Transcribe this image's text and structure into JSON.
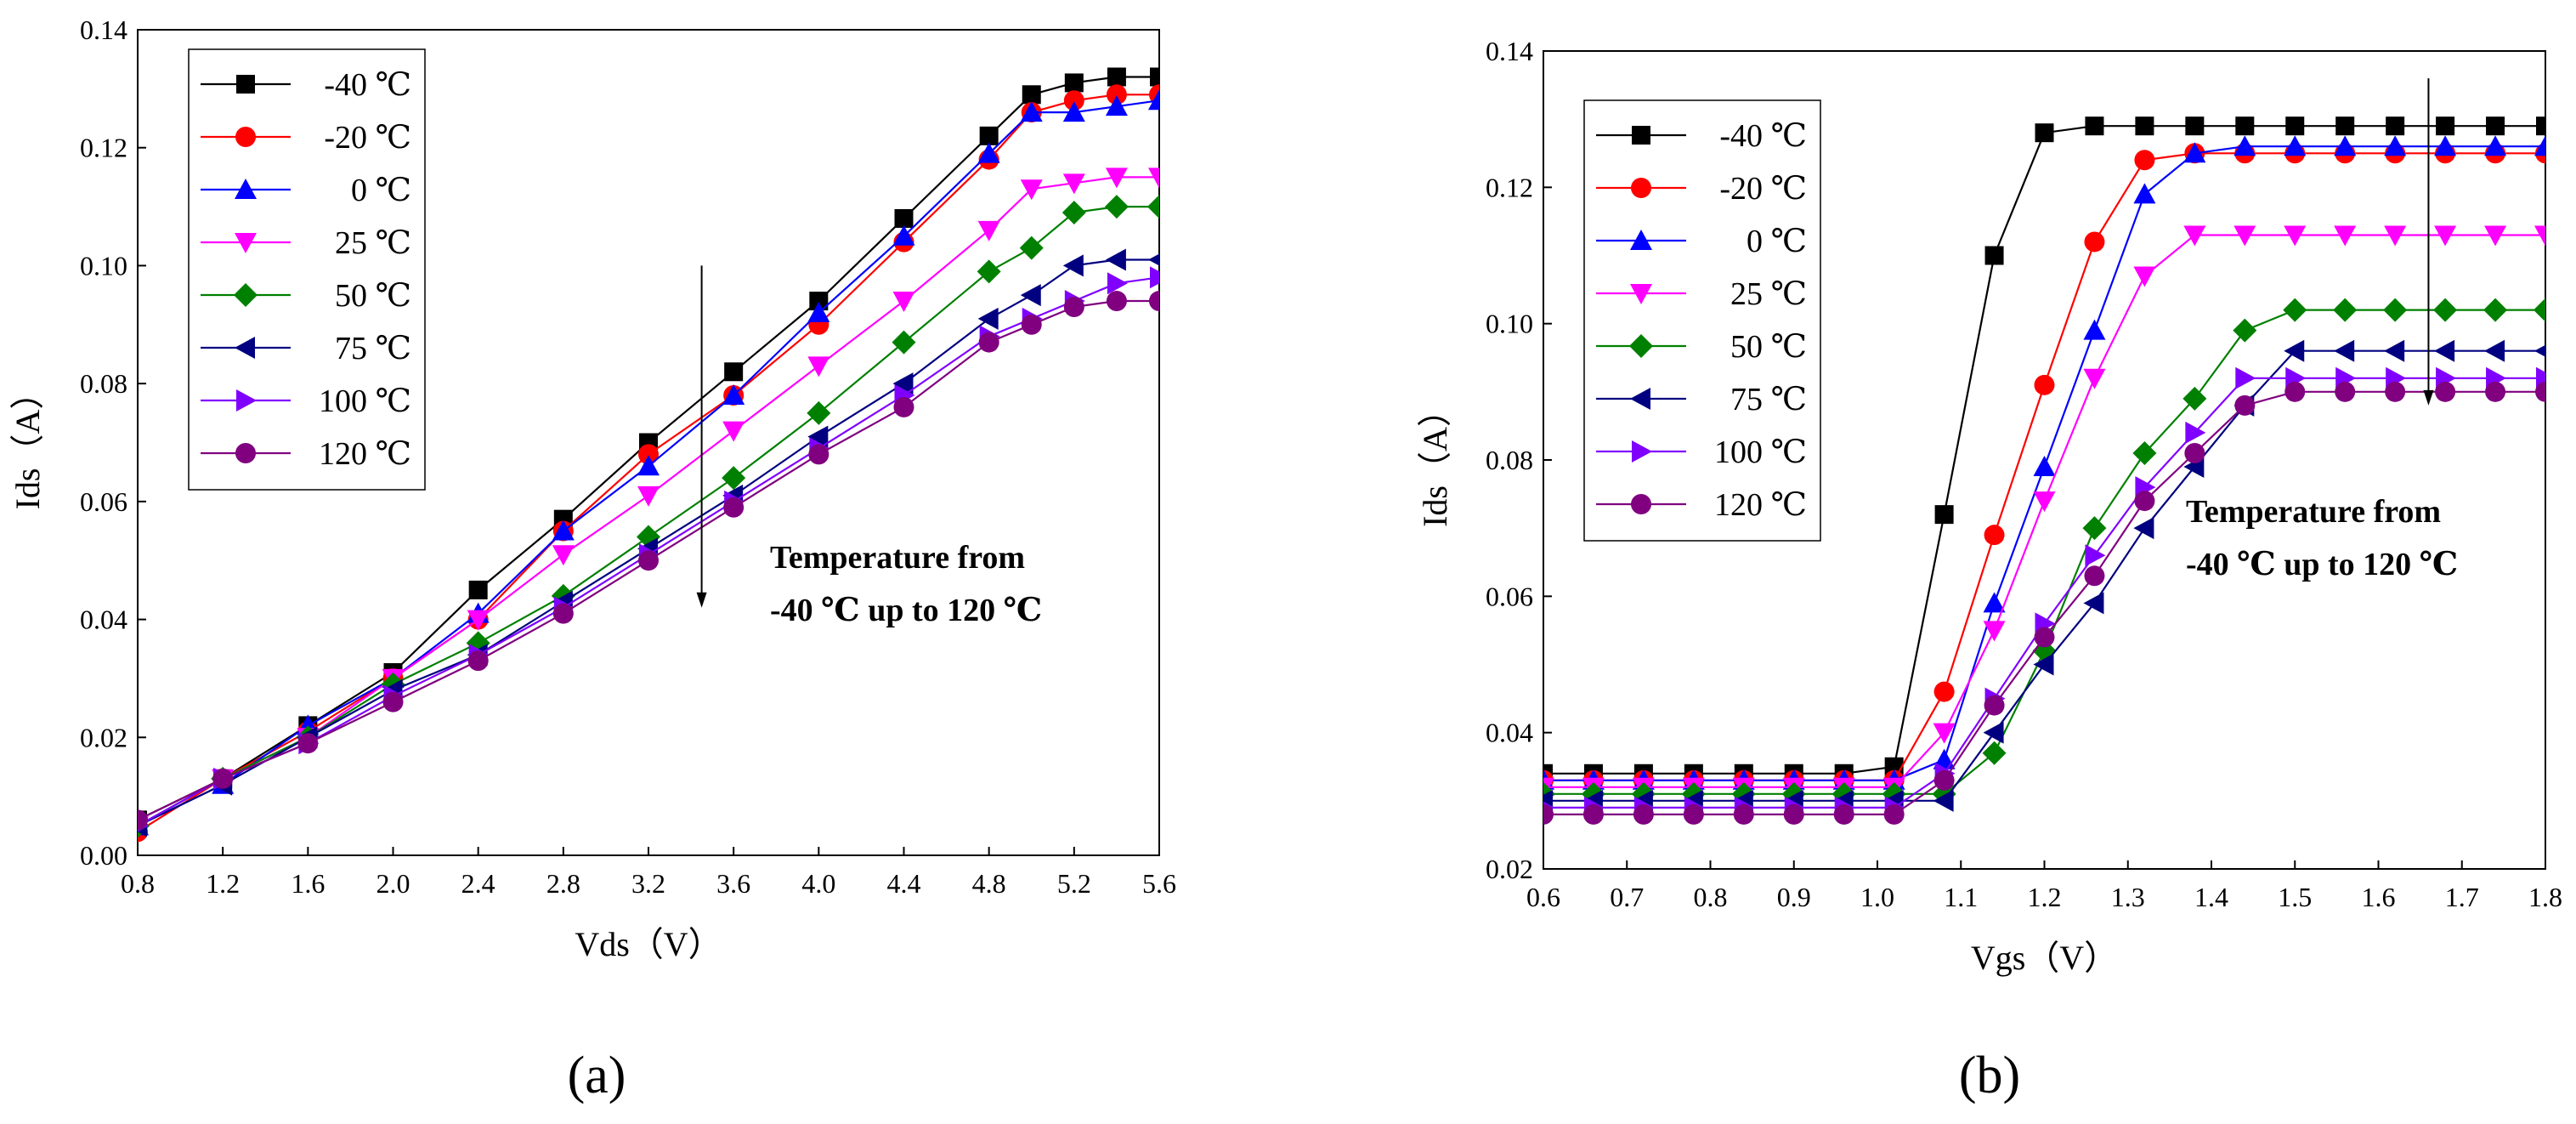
{
  "chart_data": [
    {
      "type": "line",
      "panel_label": "(a)",
      "xlabel": "Vds（V）",
      "ylabel": "Ids（A）",
      "xlim": [
        0.8,
        5.6
      ],
      "ylim": [
        0.0,
        0.14
      ],
      "xticks": [
        0.8,
        1.2,
        1.6,
        2.0,
        2.4,
        2.8,
        3.2,
        3.6,
        4.0,
        4.4,
        4.8,
        5.2,
        5.6
      ],
      "xtick_labels": [
        "0.8",
        "1.2",
        "1.6",
        "2.0",
        "2.4",
        "2.8",
        "3.2",
        "3.6",
        "4.0",
        "4.4",
        "4.8",
        "5.2",
        "5.6"
      ],
      "yticks": [
        0.0,
        0.02,
        0.04,
        0.06,
        0.08,
        0.1,
        0.12,
        0.14
      ],
      "ytick_labels": [
        "0.00",
        "0.02",
        "0.04",
        "0.06",
        "0.08",
        "0.10",
        "0.12",
        "0.14"
      ],
      "legend_position": "top-left",
      "annotation": [
        "Temperature from",
        "-40 ℃ up to 120 ℃"
      ],
      "x": [
        0.8,
        1.2,
        1.6,
        2.0,
        2.4,
        2.8,
        3.2,
        3.6,
        4.0,
        4.4,
        4.8,
        5.0,
        5.2,
        5.4,
        5.6
      ],
      "series": [
        {
          "name": "-40 ℃",
          "color": "#000000",
          "marker": "square",
          "values": [
            0.006,
            0.013,
            0.022,
            0.031,
            0.045,
            0.057,
            0.07,
            0.082,
            0.094,
            0.108,
            0.122,
            0.129,
            0.131,
            0.132,
            0.132
          ]
        },
        {
          "name": "-20 ℃",
          "color": "#ff0000",
          "marker": "circle",
          "values": [
            0.004,
            0.013,
            0.021,
            0.03,
            0.04,
            0.055,
            0.068,
            0.078,
            0.09,
            0.104,
            0.118,
            0.126,
            0.128,
            0.129,
            0.129
          ]
        },
        {
          "name": "0 ℃",
          "color": "#0000ff",
          "marker": "triangle-up",
          "values": [
            0.005,
            0.012,
            0.022,
            0.03,
            0.041,
            0.055,
            0.066,
            0.078,
            0.092,
            0.105,
            0.119,
            0.126,
            0.126,
            0.127,
            0.128
          ]
        },
        {
          "name": "25 ℃",
          "color": "#ff00ff",
          "marker": "triangle-down",
          "values": [
            0.005,
            0.013,
            0.02,
            0.03,
            0.04,
            0.051,
            0.061,
            0.072,
            0.083,
            0.094,
            0.106,
            0.113,
            0.114,
            0.115,
            0.115
          ]
        },
        {
          "name": "50 ℃",
          "color": "#008000",
          "marker": "diamond",
          "values": [
            0.005,
            0.013,
            0.02,
            0.029,
            0.036,
            0.044,
            0.054,
            0.064,
            0.075,
            0.087,
            0.099,
            0.103,
            0.109,
            0.11,
            0.11
          ]
        },
        {
          "name": "75 ℃",
          "color": "#000080",
          "marker": "triangle-left",
          "values": [
            0.005,
            0.012,
            0.02,
            0.028,
            0.034,
            0.043,
            0.052,
            0.061,
            0.071,
            0.08,
            0.091,
            0.095,
            0.1,
            0.101,
            0.101
          ]
        },
        {
          "name": "100 ℃",
          "color": "#8000ff",
          "marker": "triangle-right",
          "values": [
            0.005,
            0.013,
            0.019,
            0.027,
            0.034,
            0.042,
            0.051,
            0.06,
            0.069,
            0.078,
            0.088,
            0.091,
            0.094,
            0.097,
            0.098
          ]
        },
        {
          "name": "120 ℃",
          "color": "#800080",
          "marker": "circle",
          "values": [
            0.006,
            0.013,
            0.019,
            0.026,
            0.033,
            0.041,
            0.05,
            0.059,
            0.068,
            0.076,
            0.087,
            0.09,
            0.093,
            0.094,
            0.094
          ]
        }
      ]
    },
    {
      "type": "line",
      "panel_label": "(b)",
      "xlabel": "Vgs（V）",
      "ylabel": "Ids（A）",
      "xlim": [
        0.6,
        1.8
      ],
      "ylim": [
        0.02,
        0.14
      ],
      "xticks": [
        0.6,
        0.7,
        0.8,
        0.9,
        1.0,
        1.1,
        1.2,
        1.3,
        1.4,
        1.5,
        1.6,
        1.7,
        1.8
      ],
      "xtick_labels": [
        "0.6",
        "0.7",
        "0.8",
        "0.9",
        "1.0",
        "1.1",
        "1.2",
        "1.3",
        "1.4",
        "1.5",
        "1.6",
        "1.7",
        "1.8"
      ],
      "yticks": [
        0.02,
        0.04,
        0.06,
        0.08,
        0.1,
        0.12,
        0.14
      ],
      "ytick_labels": [
        "0.02",
        "0.04",
        "0.06",
        "0.08",
        "0.10",
        "0.12",
        "0.14"
      ],
      "legend_position": "top-left",
      "annotation": [
        "Temperature from",
        "-40 ℃ up to 120 ℃"
      ],
      "x": [
        0.6,
        0.66,
        0.72,
        0.78,
        0.84,
        0.9,
        0.96,
        1.02,
        1.08,
        1.14,
        1.2,
        1.26,
        1.32,
        1.38,
        1.44,
        1.5,
        1.56,
        1.62,
        1.68,
        1.74,
        1.8
      ],
      "series": [
        {
          "name": "-40 ℃",
          "color": "#000000",
          "marker": "square",
          "values": [
            0.034,
            0.034,
            0.034,
            0.034,
            0.034,
            0.034,
            0.034,
            0.035,
            0.072,
            0.11,
            0.128,
            0.129,
            0.129,
            0.129,
            0.129,
            0.129,
            0.129,
            0.129,
            0.129,
            0.129,
            0.129
          ]
        },
        {
          "name": "-20 ℃",
          "color": "#ff0000",
          "marker": "circle",
          "values": [
            0.033,
            0.033,
            0.033,
            0.033,
            0.033,
            0.033,
            0.033,
            0.033,
            0.046,
            0.069,
            0.091,
            0.112,
            0.124,
            0.125,
            0.125,
            0.125,
            0.125,
            0.125,
            0.125,
            0.125,
            0.125
          ]
        },
        {
          "name": "0 ℃",
          "color": "#0000ff",
          "marker": "triangle-up",
          "values": [
            0.033,
            0.033,
            0.033,
            0.033,
            0.033,
            0.033,
            0.033,
            0.033,
            0.036,
            0.059,
            0.079,
            0.099,
            0.119,
            0.125,
            0.126,
            0.126,
            0.126,
            0.126,
            0.126,
            0.126,
            0.126
          ]
        },
        {
          "name": "25 ℃",
          "color": "#ff00ff",
          "marker": "triangle-down",
          "values": [
            0.032,
            0.032,
            0.032,
            0.032,
            0.032,
            0.032,
            0.032,
            0.032,
            0.04,
            0.055,
            0.074,
            0.092,
            0.107,
            0.113,
            0.113,
            0.113,
            0.113,
            0.113,
            0.113,
            0.113,
            0.113
          ]
        },
        {
          "name": "50 ℃",
          "color": "#008000",
          "marker": "diamond",
          "values": [
            0.031,
            0.031,
            0.031,
            0.031,
            0.031,
            0.031,
            0.031,
            0.031,
            0.031,
            0.037,
            0.052,
            0.07,
            0.081,
            0.089,
            0.099,
            0.102,
            0.102,
            0.102,
            0.102,
            0.102,
            0.102
          ]
        },
        {
          "name": "75 ℃",
          "color": "#000080",
          "marker": "triangle-left",
          "values": [
            0.03,
            0.03,
            0.03,
            0.03,
            0.03,
            0.03,
            0.03,
            0.03,
            0.03,
            0.04,
            0.05,
            0.059,
            0.07,
            0.079,
            0.088,
            0.096,
            0.096,
            0.096,
            0.096,
            0.096,
            0.096
          ]
        },
        {
          "name": "100 ℃",
          "color": "#8000ff",
          "marker": "triangle-right",
          "values": [
            0.029,
            0.029,
            0.029,
            0.029,
            0.029,
            0.029,
            0.029,
            0.029,
            0.034,
            0.045,
            0.056,
            0.066,
            0.076,
            0.084,
            0.092,
            0.092,
            0.092,
            0.092,
            0.092,
            0.092,
            0.092
          ]
        },
        {
          "name": "120 ℃",
          "color": "#800080",
          "marker": "circle",
          "values": [
            0.028,
            0.028,
            0.028,
            0.028,
            0.028,
            0.028,
            0.028,
            0.028,
            0.033,
            0.044,
            0.054,
            0.063,
            0.074,
            0.081,
            0.088,
            0.09,
            0.09,
            0.09,
            0.09,
            0.09,
            0.09
          ]
        }
      ]
    }
  ]
}
